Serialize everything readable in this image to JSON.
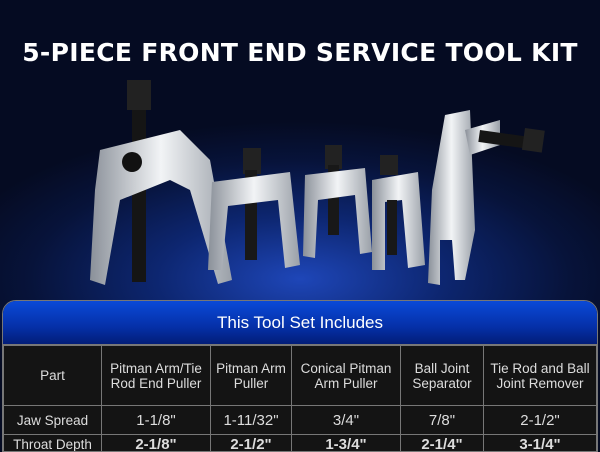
{
  "title": "5-PIECE FRONT END SERVICE TOOL KIT",
  "table": {
    "heading": "This Tool Set Includes",
    "header_label": "Part",
    "columns": [
      "Pitman Arm/Tie Rod End Puller",
      "Pitman Arm Puller",
      "Conical Pitman Arm Puller",
      "Ball Joint Separator",
      "Tie Rod and Ball Joint Remover"
    ],
    "rows": [
      {
        "label": "Jaw Spread",
        "values": [
          "1-1/8\"",
          "1-11/32\"",
          "3/4\"",
          "7/8\"",
          "2-1/2\""
        ]
      },
      {
        "label": "Throat Depth",
        "values": [
          "2-1/8\"",
          "2-1/2\"",
          "1-3/4\"",
          "2-1/4\"",
          "3-1/4\""
        ]
      }
    ]
  },
  "colors": {
    "header_blue": "#0a4ad8",
    "background": "#07133a"
  }
}
